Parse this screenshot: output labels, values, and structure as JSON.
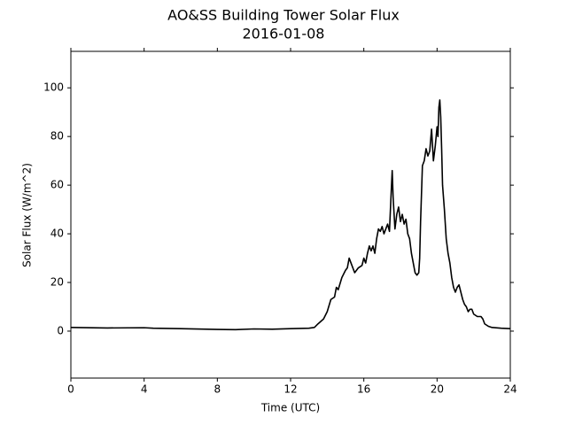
{
  "chart_data": {
    "type": "line",
    "title": "AO&SS Building Tower Solar Flux",
    "subtitle": "2016-01-08",
    "x_label": "Time (UTC)",
    "y_label": "Solar Flux (W/m^2)",
    "color": "#000000",
    "xlim": [
      0,
      24
    ],
    "xticks": [
      0,
      4,
      8,
      12,
      16,
      20,
      24
    ],
    "ylim": [
      -19.3,
      115
    ],
    "yticks": [
      0,
      20,
      40,
      60,
      80,
      100
    ],
    "x": [
      0,
      2,
      4,
      4.5,
      6,
      8,
      9,
      10,
      11,
      12,
      13,
      13.3,
      13.5,
      13.8,
      14,
      14.2,
      14.4,
      14.5,
      14.6,
      14.8,
      15,
      15.1,
      15.2,
      15.3,
      15.5,
      15.7,
      15.9,
      16,
      16.1,
      16.2,
      16.3,
      16.4,
      16.5,
      16.6,
      16.7,
      16.8,
      16.9,
      17,
      17.1,
      17.2,
      17.3,
      17.4,
      17.5,
      17.55,
      17.6,
      17.7,
      17.8,
      17.9,
      18,
      18.1,
      18.2,
      18.3,
      18.4,
      18.5,
      18.6,
      18.7,
      18.8,
      18.9,
      19.0,
      19.05,
      19.1,
      19.2,
      19.3,
      19.4,
      19.5,
      19.6,
      19.7,
      19.8,
      19.9,
      20,
      20.05,
      20.1,
      20.15,
      20.2,
      20.25,
      20.3,
      20.4,
      20.5,
      20.6,
      20.7,
      20.8,
      20.9,
      21,
      21.1,
      21.2,
      21.3,
      21.4,
      21.5,
      21.6,
      21.7,
      21.8,
      21.9,
      22,
      22.2,
      22.4,
      22.5,
      22.6,
      22.8,
      23,
      23.5,
      24
    ],
    "values": [
      1.5,
      1.3,
      1.4,
      1.2,
      1.0,
      0.7,
      0.6,
      0.9,
      0.8,
      1.0,
      1.2,
      1.5,
      3,
      5,
      8,
      13,
      14,
      18,
      17,
      22,
      25,
      26,
      30,
      28,
      24,
      26,
      27,
      30,
      28,
      32,
      35,
      33,
      35,
      32,
      38,
      42,
      41,
      43,
      40,
      42,
      44,
      41,
      58,
      66,
      55,
      42,
      48,
      51,
      45,
      48,
      44,
      46,
      40,
      38,
      32,
      28,
      24,
      23,
      24,
      30,
      45,
      68,
      70,
      75,
      72,
      74,
      83,
      70,
      76,
      84,
      80,
      92,
      95,
      88,
      75,
      60,
      50,
      38,
      32,
      28,
      22,
      18,
      16,
      18,
      19,
      16,
      13,
      11,
      10,
      8,
      9,
      9,
      7,
      6,
      6,
      5,
      3,
      2,
      1.5,
      1.2,
      1.0
    ]
  }
}
